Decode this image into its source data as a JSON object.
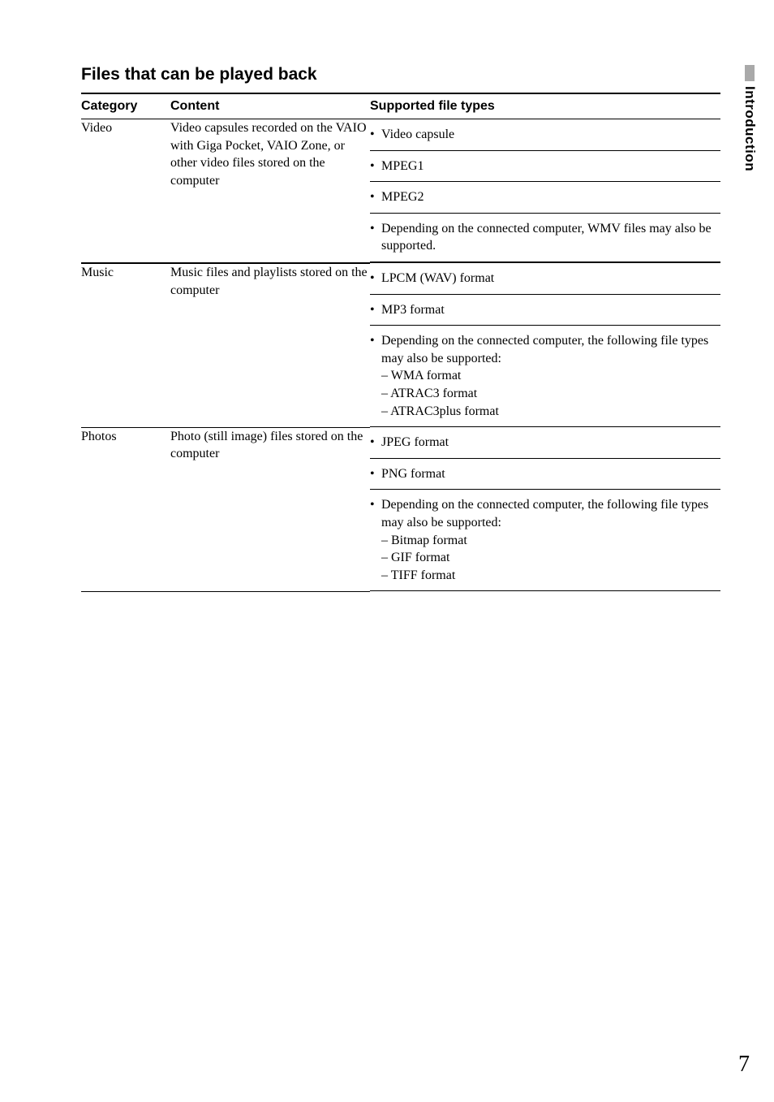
{
  "section_title": "Files that can be played back",
  "side_tab_label": "Introduction",
  "page_number": "7",
  "table": {
    "headers": {
      "category": "Category",
      "content": "Content",
      "types": "Supported file types"
    },
    "rows": [
      {
        "category": "Video",
        "content": "Video capsules recorded on the VAIO with Giga Pocket, VAIO Zone, or other video files stored on the computer",
        "types": [
          {
            "lines": [
              "Video capsule"
            ]
          },
          {
            "lines": [
              "MPEG1"
            ]
          },
          {
            "lines": [
              "MPEG2"
            ]
          },
          {
            "lines": [
              "Depending on the connected computer, WMV files may also be supported."
            ]
          }
        ],
        "last_border": "heavy"
      },
      {
        "category": "Music",
        "content": "Music files and playlists stored on the computer",
        "types": [
          {
            "lines": [
              "LPCM (WAV) format"
            ]
          },
          {
            "lines": [
              "MP3 format"
            ]
          },
          {
            "lines": [
              "Depending on the connected computer, the following file types may also be supported:",
              "– WMA format",
              "– ATRAC3 format",
              "– ATRAC3plus format"
            ]
          }
        ],
        "last_border": "light"
      },
      {
        "category": "Photos",
        "content": "Photo (still image) files stored on the computer",
        "types": [
          {
            "lines": [
              "JPEG format"
            ]
          },
          {
            "lines": [
              "PNG format"
            ]
          },
          {
            "lines": [
              "Depending on the connected computer, the following file types may also be supported:",
              "– Bitmap format",
              "– GIF format",
              "– TIFF format"
            ]
          }
        ],
        "last_border": "light"
      }
    ]
  }
}
